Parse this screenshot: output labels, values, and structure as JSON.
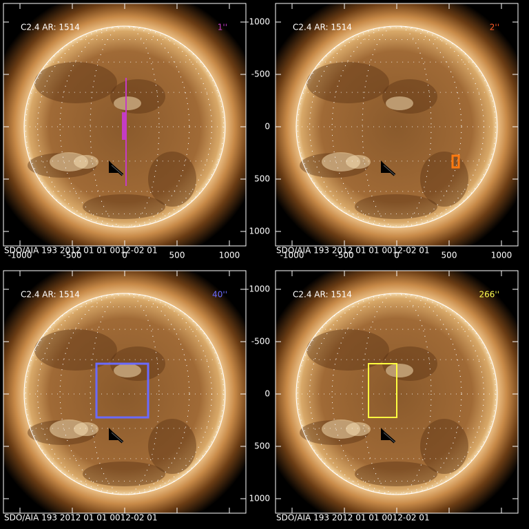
{
  "panels": [
    {
      "event": "C2.4 AR: 1514",
      "scale": "1''",
      "scale_color": "#c43cc4",
      "footer": "SDO/AIA 193   2012 01 01 0012-02 01"
    },
    {
      "event": "C2.4 AR: 1514",
      "scale": "2''",
      "scale_color": "#ff5a28",
      "footer": "SDO/AIA 193   2012 01 01 0012-02 01"
    },
    {
      "event": "C2.4 AR: 1514",
      "scale": "40''",
      "scale_color": "#6a6aff",
      "footer": "SDO/AIA 193   2012 01 01 0012-02 01"
    },
    {
      "event": "C2.4 AR: 1514",
      "scale": "266''",
      "scale_color": "#ffff50",
      "footer": "SDO/AIA 193   2012 01 01 0012-02 01"
    }
  ],
  "x_ticks": [
    "-1000",
    "-500",
    "0",
    "500",
    "1000"
  ],
  "y_ticks": [
    "1000",
    "500",
    "0",
    "-500",
    "-1000"
  ]
}
